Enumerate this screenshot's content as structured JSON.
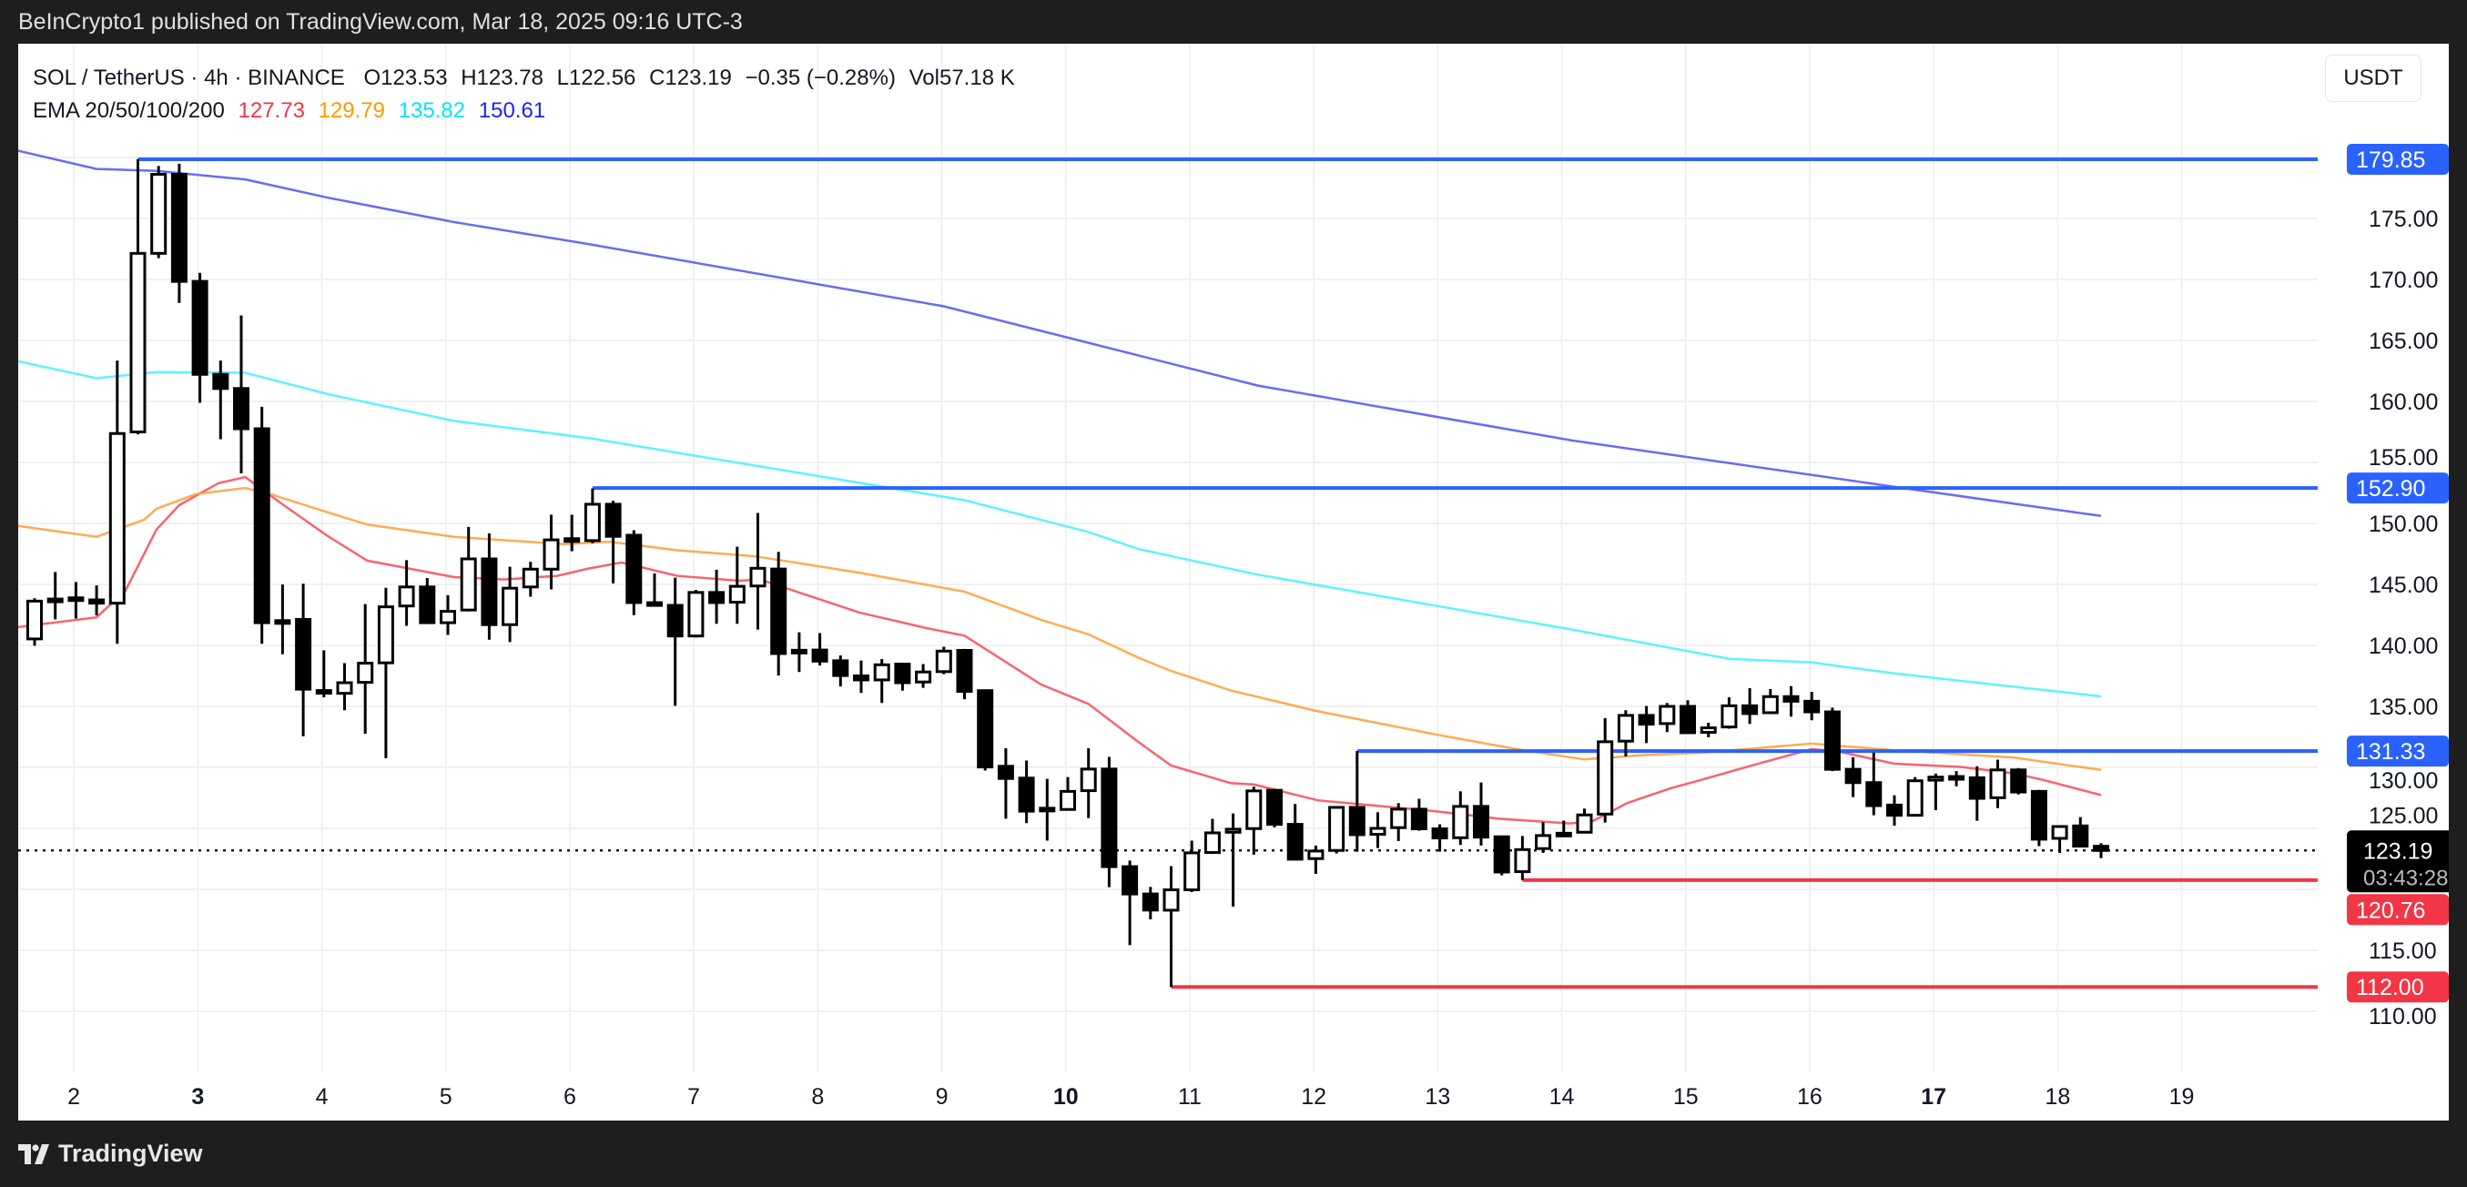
{
  "publish_line": "BeInCrypto1 published on TradingView.com, Mar 18, 2025 09:16 UTC-3",
  "legend": {
    "symbol": "SOL / TetherUS · 4h · BINANCE",
    "open": "O123.53",
    "high": "H123.78",
    "low": "L122.56",
    "close": "C123.19",
    "change": "−0.35 (−0.28%)",
    "volume": "Vol57.18 K",
    "ema_label": "EMA 20/50/100/200",
    "ema_values": [
      "127.73",
      "129.79",
      "135.82",
      "150.61"
    ],
    "ema_colors": [
      "#f23645",
      "#ff9800",
      "#00e5ff",
      "#2020ff"
    ]
  },
  "currency_button": "USDT",
  "brand": "TradingView",
  "chart_data": {
    "type": "candlestick",
    "title": "SOL / TetherUS · 4h · BINANCE",
    "ylim": [
      106,
      184
    ],
    "y_ticks": [
      "175.00",
      "170.00",
      "165.00",
      "160.00",
      "155.00",
      "150.00",
      "145.00",
      "140.00",
      "135.00",
      "130.00",
      "125.00",
      "115.00",
      "110.00"
    ],
    "y_tick_values": [
      175,
      170,
      165,
      160,
      155,
      150,
      145,
      140,
      135,
      130,
      125,
      115,
      110
    ],
    "x_ticks": [
      {
        "label": "2",
        "idx": 1.9,
        "bold": false
      },
      {
        "label": "3",
        "idx": 7.9,
        "bold": true
      },
      {
        "label": "4",
        "idx": 13.9,
        "bold": false
      },
      {
        "label": "5",
        "idx": 19.9,
        "bold": false
      },
      {
        "label": "6",
        "idx": 25.9,
        "bold": false
      },
      {
        "label": "7",
        "idx": 31.9,
        "bold": false
      },
      {
        "label": "8",
        "idx": 37.9,
        "bold": false
      },
      {
        "label": "9",
        "idx": 43.9,
        "bold": false
      },
      {
        "label": "10",
        "idx": 49.9,
        "bold": true
      },
      {
        "label": "11",
        "idx": 55.9,
        "bold": false
      },
      {
        "label": "12",
        "idx": 61.9,
        "bold": false
      },
      {
        "label": "13",
        "idx": 67.9,
        "bold": false
      },
      {
        "label": "14",
        "idx": 73.9,
        "bold": false
      },
      {
        "label": "15",
        "idx": 79.9,
        "bold": false
      },
      {
        "label": "16",
        "idx": 85.9,
        "bold": false
      },
      {
        "label": "17",
        "idx": 91.9,
        "bold": true
      },
      {
        "label": "18",
        "idx": 97.9,
        "bold": false
      },
      {
        "label": "19",
        "idx": 103.9,
        "bold": false
      }
    ],
    "candles_ohlc": [
      [
        140.53,
        143.86,
        139.97,
        143.63
      ],
      [
        143.7,
        146.02,
        142.13,
        143.8
      ],
      [
        143.85,
        145.19,
        142.2,
        143.9
      ],
      [
        143.73,
        144.92,
        142.46,
        143.46
      ],
      [
        143.46,
        163.35,
        140.13,
        157.37
      ],
      [
        157.5,
        179.85,
        157.3,
        172.14
      ],
      [
        172.14,
        179.3,
        171.74,
        178.62
      ],
      [
        178.62,
        179.49,
        168.08,
        169.84
      ],
      [
        169.84,
        170.54,
        159.89,
        162.22
      ],
      [
        162.22,
        163.35,
        156.9,
        161.06
      ],
      [
        161.06,
        167.05,
        154.1,
        157.76
      ],
      [
        157.76,
        159.56,
        140.13,
        141.86
      ],
      [
        141.97,
        144.99,
        139.27,
        142.03
      ],
      [
        142.13,
        145.06,
        132.55,
        136.41
      ],
      [
        136.3,
        139.6,
        135.74,
        136.1
      ],
      [
        136.07,
        138.54,
        134.68,
        136.94
      ],
      [
        136.97,
        143.39,
        132.75,
        138.54
      ],
      [
        138.57,
        144.72,
        130.75,
        143.16
      ],
      [
        143.23,
        146.99,
        141.6,
        144.79
      ],
      [
        144.79,
        145.52,
        141.86,
        141.86
      ],
      [
        141.86,
        144.12,
        140.86,
        142.79
      ],
      [
        142.9,
        149.71,
        142.79,
        147.09
      ],
      [
        147.09,
        149.18,
        140.47,
        141.7
      ],
      [
        141.7,
        146.45,
        140.27,
        144.69
      ],
      [
        144.79,
        146.85,
        143.99,
        146.25
      ],
      [
        146.25,
        150.71,
        144.59,
        148.65
      ],
      [
        148.7,
        150.71,
        147.72,
        148.75
      ],
      [
        148.59,
        152.87,
        148.38,
        151.57
      ],
      [
        151.57,
        151.86,
        145.08,
        148.94
      ],
      [
        149.03,
        149.44,
        142.48,
        143.51
      ],
      [
        143.5,
        145.9,
        143.19,
        143.3
      ],
      [
        143.28,
        145.55,
        135.05,
        140.77
      ],
      [
        140.77,
        144.55,
        140.65,
        144.34
      ],
      [
        144.34,
        146.2,
        141.77,
        143.51
      ],
      [
        143.54,
        148.09,
        141.77,
        144.84
      ],
      [
        144.87,
        150.86,
        141.3,
        146.32
      ],
      [
        146.26,
        147.67,
        137.53,
        139.33
      ],
      [
        139.4,
        141.07,
        137.82,
        139.6
      ],
      [
        139.62,
        141.01,
        138.35,
        138.71
      ],
      [
        138.74,
        139.18,
        136.64,
        137.53
      ],
      [
        137.5,
        138.76,
        136.1,
        137.17
      ],
      [
        137.17,
        138.88,
        135.28,
        138.41
      ],
      [
        138.47,
        138.53,
        136.29,
        136.94
      ],
      [
        137.0,
        138.47,
        136.52,
        137.82
      ],
      [
        137.85,
        139.89,
        137.64,
        139.53
      ],
      [
        139.59,
        139.71,
        135.58,
        136.23
      ],
      [
        136.29,
        136.35,
        129.74,
        130.03
      ],
      [
        130.09,
        131.57,
        125.79,
        129.09
      ],
      [
        129.12,
        130.56,
        125.43,
        126.41
      ],
      [
        126.55,
        129.06,
        123.99,
        126.65
      ],
      [
        126.55,
        129.21,
        126.5,
        128.03
      ],
      [
        128.09,
        131.57,
        125.84,
        129.86
      ],
      [
        129.86,
        130.86,
        120.18,
        121.86
      ],
      [
        121.86,
        122.36,
        115.43,
        119.62
      ],
      [
        119.62,
        120.2,
        117.54,
        118.3
      ],
      [
        118.29,
        121.9,
        112.0,
        119.96
      ],
      [
        119.96,
        123.99,
        119.78,
        122.99
      ],
      [
        123.02,
        125.78,
        122.9,
        124.63
      ],
      [
        124.68,
        126.22,
        118.59,
        124.93
      ],
      [
        124.98,
        128.41,
        122.84,
        128.07
      ],
      [
        128.12,
        128.24,
        125.08,
        125.33
      ],
      [
        125.33,
        127.0,
        122.47,
        122.47
      ],
      [
        122.52,
        123.59,
        121.27,
        123.14
      ],
      [
        123.19,
        126.82,
        122.94,
        126.72
      ],
      [
        126.72,
        131.33,
        123.09,
        124.48
      ],
      [
        124.51,
        126.32,
        123.39,
        125.0
      ],
      [
        125.06,
        127.07,
        123.96,
        126.57
      ],
      [
        126.57,
        127.42,
        124.81,
        124.96
      ],
      [
        124.96,
        125.33,
        123.09,
        124.21
      ],
      [
        124.23,
        128.04,
        123.64,
        126.8
      ],
      [
        126.8,
        128.76,
        123.59,
        124.28
      ],
      [
        124.31,
        124.38,
        121.15,
        121.42
      ],
      [
        121.45,
        124.38,
        120.76,
        123.26
      ],
      [
        123.34,
        125.5,
        122.99,
        124.41
      ],
      [
        124.6,
        125.63,
        124.46,
        124.46
      ],
      [
        124.68,
        126.62,
        124.62,
        126.1
      ],
      [
        126.17,
        134.04,
        125.48,
        132.1
      ],
      [
        132.15,
        134.68,
        130.9,
        134.26
      ],
      [
        134.26,
        135.03,
        131.99,
        133.54
      ],
      [
        133.59,
        135.28,
        132.89,
        135.0
      ],
      [
        135.0,
        135.5,
        132.8,
        132.84
      ],
      [
        132.87,
        133.66,
        132.47,
        133.24
      ],
      [
        133.31,
        135.75,
        133.17,
        135.05
      ],
      [
        135.05,
        136.49,
        133.56,
        134.41
      ],
      [
        134.48,
        136.42,
        134.4,
        135.8
      ],
      [
        135.8,
        136.66,
        134.16,
        135.42
      ],
      [
        135.42,
        136.19,
        133.86,
        134.55
      ],
      [
        134.55,
        134.9,
        129.69,
        129.84
      ],
      [
        129.84,
        130.83,
        127.56,
        128.75
      ],
      [
        128.75,
        131.2,
        126.07,
        126.86
      ],
      [
        126.91,
        127.71,
        125.22,
        126.07
      ],
      [
        126.07,
        129.2,
        126.0,
        128.9
      ],
      [
        128.95,
        129.49,
        126.49,
        129.2
      ],
      [
        129.24,
        129.69,
        128.45,
        129.25
      ],
      [
        129.15,
        130.09,
        125.62,
        127.46
      ],
      [
        127.51,
        130.63,
        126.66,
        129.79
      ],
      [
        129.79,
        129.94,
        127.78,
        127.98
      ],
      [
        128.03,
        128.15,
        123.54,
        124.11
      ],
      [
        124.18,
        125.15,
        122.99,
        125.15
      ],
      [
        125.2,
        125.92,
        123.54,
        123.54
      ],
      [
        123.53,
        123.78,
        122.56,
        123.19
      ]
    ],
    "ema_series": [
      {
        "name": "EMA 20",
        "color": "#f7525f",
        "points": [
          [
            -0.8,
            141.5
          ],
          [
            3,
            142.3
          ],
          [
            4.4,
            144.5
          ],
          [
            5.9,
            149.5
          ],
          [
            7,
            151.5
          ],
          [
            8.9,
            153.3
          ],
          [
            10.2,
            153.8
          ],
          [
            11.8,
            151.8
          ],
          [
            14.2,
            148.95
          ],
          [
            16.1,
            146.95
          ],
          [
            20.3,
            145.6
          ],
          [
            22.7,
            145.4
          ],
          [
            25.3,
            145.7
          ],
          [
            26.8,
            146.3
          ],
          [
            28.4,
            146.8
          ],
          [
            31.1,
            145.7
          ],
          [
            34.1,
            145.3
          ],
          [
            35.1,
            145.4
          ],
          [
            39.9,
            142.7
          ],
          [
            43.2,
            141.4
          ],
          [
            45,
            140.8
          ],
          [
            48.7,
            136.8
          ],
          [
            51,
            135.2
          ],
          [
            53.4,
            132.1
          ],
          [
            55,
            130.15
          ],
          [
            57.9,
            128.7
          ],
          [
            59,
            128.6
          ],
          [
            62.1,
            127.3
          ],
          [
            67.8,
            126.4
          ],
          [
            70.8,
            125.8
          ],
          [
            74.3,
            125.4
          ],
          [
            75.4,
            125.6
          ],
          [
            77.1,
            127.1
          ],
          [
            79.2,
            128.3
          ],
          [
            80.7,
            129.0
          ],
          [
            83.2,
            130.2
          ],
          [
            86,
            131.5
          ],
          [
            87.3,
            131.3
          ],
          [
            90,
            130.3
          ],
          [
            93.2,
            130.04
          ],
          [
            94.4,
            129.8
          ],
          [
            95.8,
            129.5
          ],
          [
            97.2,
            128.97
          ],
          [
            100,
            127.73
          ]
        ]
      },
      {
        "name": "EMA 50",
        "color": "#ffa23f",
        "points": [
          [
            -0.8,
            149.8
          ],
          [
            3,
            148.9
          ],
          [
            5.3,
            150.3
          ],
          [
            5.9,
            151.2
          ],
          [
            7.8,
            152.4
          ],
          [
            10.2,
            152.9
          ],
          [
            11.6,
            152.3
          ],
          [
            14.2,
            150.9
          ],
          [
            16.1,
            149.9
          ],
          [
            20.3,
            148.9
          ],
          [
            25.6,
            148.3
          ],
          [
            27.8,
            148.5
          ],
          [
            31.1,
            147.8
          ],
          [
            34.9,
            147.3
          ],
          [
            39.9,
            145.96
          ],
          [
            45,
            144.4
          ],
          [
            48.7,
            142.1
          ],
          [
            51,
            140.9
          ],
          [
            53.4,
            139.0
          ],
          [
            55,
            137.9
          ],
          [
            57.9,
            136.3
          ],
          [
            62.1,
            134.6
          ],
          [
            67.8,
            132.7
          ],
          [
            71.7,
            131.5
          ],
          [
            75,
            130.65
          ],
          [
            77.8,
            131.0
          ],
          [
            80.7,
            131.2
          ],
          [
            86,
            131.95
          ],
          [
            90,
            131.4
          ],
          [
            95.8,
            130.8
          ],
          [
            100,
            129.79
          ]
        ]
      },
      {
        "name": "EMA 100",
        "color": "#4df2ff",
        "points": [
          [
            -0.8,
            163.3
          ],
          [
            3,
            161.9
          ],
          [
            5.9,
            162.4
          ],
          [
            10.2,
            162.35
          ],
          [
            14.2,
            160.6
          ],
          [
            20.3,
            158.4
          ],
          [
            26.8,
            157.0
          ],
          [
            31.8,
            155.6
          ],
          [
            41.8,
            152.8
          ],
          [
            45,
            151.9
          ],
          [
            51,
            149.3
          ],
          [
            53.4,
            147.9
          ],
          [
            59.2,
            145.8
          ],
          [
            74.4,
            141.3
          ],
          [
            82,
            138.9
          ],
          [
            86,
            138.6
          ],
          [
            90,
            137.7
          ],
          [
            100,
            135.82
          ]
        ]
      },
      {
        "name": "EMA 200",
        "color": "#5a5af5",
        "points": [
          [
            -0.8,
            180.55
          ],
          [
            3,
            179.06
          ],
          [
            5.9,
            178.9
          ],
          [
            10.2,
            178.2
          ],
          [
            14.2,
            176.7
          ],
          [
            20.3,
            174.7
          ],
          [
            26.8,
            172.9
          ],
          [
            44,
            167.8
          ],
          [
            59.2,
            161.3
          ],
          [
            74.4,
            156.8
          ],
          [
            90.4,
            152.9
          ],
          [
            100,
            150.61
          ]
        ]
      }
    ],
    "levels": [
      {
        "label": "179.85",
        "value": 179.85,
        "start_idx": 5,
        "color": "#2962ff"
      },
      {
        "label": "152.90",
        "value": 152.9,
        "start_idx": 27,
        "color": "#2962ff"
      },
      {
        "label": "131.33",
        "value": 131.33,
        "start_idx": 64,
        "color": "#2962ff"
      },
      {
        "label": "120.76",
        "value": 120.76,
        "start_idx": 72,
        "color": "#f23645"
      },
      {
        "label": "112.00",
        "value": 112.0,
        "start_idx": 55,
        "color": "#f23645"
      }
    ],
    "last_price": {
      "label": "123.19",
      "value": 123.19,
      "countdown": "03:43:28"
    }
  }
}
